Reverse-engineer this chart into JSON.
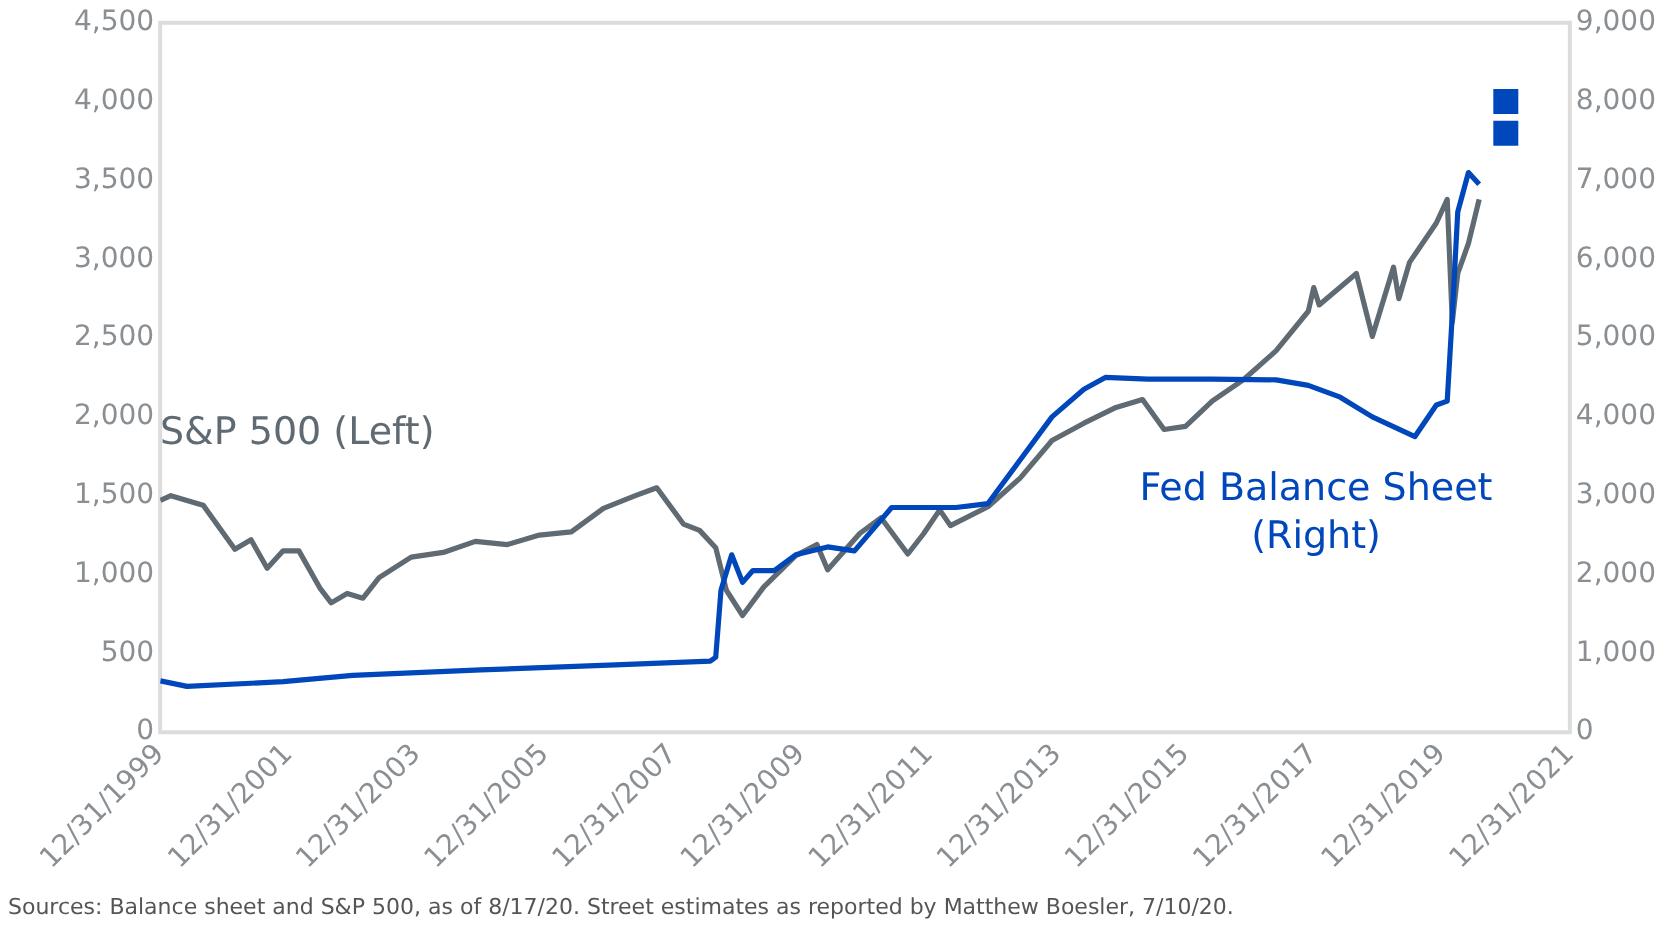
{
  "chart_data": {
    "type": "line",
    "annotations": [
      "Sources: Balance sheet and S&P 500, as of 8/17/20. Street estimates as reported by Matthew Boesler, 7/10/20."
    ],
    "xlim": [
      "1999-12-31",
      "2021-12-31"
    ],
    "xticks": [
      {
        "value": "1999-12-31",
        "label": "12/31/1999"
      },
      {
        "value": "2001-12-31",
        "label": "12/31/2001"
      },
      {
        "value": "2003-12-31",
        "label": "12/31/2003"
      },
      {
        "value": "2005-12-31",
        "label": "12/31/2005"
      },
      {
        "value": "2007-12-31",
        "label": "12/31/2007"
      },
      {
        "value": "2009-12-31",
        "label": "12/31/2009"
      },
      {
        "value": "2011-12-31",
        "label": "12/31/2011"
      },
      {
        "value": "2013-12-31",
        "label": "12/31/2013"
      },
      {
        "value": "2015-12-31",
        "label": "12/31/2015"
      },
      {
        "value": "2017-12-31",
        "label": "12/31/2017"
      },
      {
        "value": "2019-12-31",
        "label": "12/31/2019"
      },
      {
        "value": "2021-12-31",
        "label": "12/31/2021"
      }
    ],
    "ylim": [
      0,
      4500
    ],
    "yticks": [
      0,
      {
        "value": 500,
        "label": "500"
      },
      {
        "value": 1000,
        "label": "1,000"
      },
      {
        "value": 1500,
        "label": "1,500"
      },
      {
        "value": 2000,
        "label": "2,000"
      },
      {
        "value": 2500,
        "label": "2,500"
      },
      {
        "value": 3000,
        "label": "3,000"
      },
      {
        "value": 3500,
        "label": "3,500"
      },
      {
        "value": 4000,
        "label": "4,000"
      },
      {
        "value": 4500,
        "label": "4,500"
      }
    ],
    "y2lim": [
      0,
      9000
    ],
    "y2ticks": [
      0,
      {
        "value": 1000,
        "label": "1,000"
      },
      {
        "value": 2000,
        "label": "2,000"
      },
      {
        "value": 3000,
        "label": "3,000"
      },
      {
        "value": 4000,
        "label": "4,000"
      },
      {
        "value": 5000,
        "label": "5,000"
      },
      {
        "value": 6000,
        "label": "6,000"
      },
      {
        "value": 7000,
        "label": "7,000"
      },
      {
        "value": 8000,
        "label": "8,000"
      },
      {
        "value": 9000,
        "label": "9,000"
      }
    ],
    "grid": false,
    "legend": false,
    "marker": "none",
    "line_style": "solid",
    "series": [
      {
        "name": "S&P 500 (Left)",
        "color": "#5f6a72",
        "x": [
          "2000-01",
          "2000-03",
          "2000-09",
          "2001-03",
          "2001-06",
          "2001-09",
          "2001-12",
          "2002-03",
          "2002-07",
          "2002-09",
          "2002-12",
          "2003-03",
          "2003-06",
          "2003-12",
          "2004-06",
          "2004-12",
          "2005-06",
          "2005-12",
          "2006-06",
          "2006-12",
          "2007-06",
          "2007-10",
          "2008-03",
          "2008-06",
          "2008-09",
          "2008-11",
          "2009-02",
          "2009-06",
          "2009-12",
          "2010-04",
          "2010-06",
          "2010-12",
          "2011-04",
          "2011-09",
          "2011-12",
          "2012-03",
          "2012-05",
          "2012-12",
          "2013-06",
          "2013-12",
          "2014-06",
          "2014-12",
          "2015-05",
          "2015-09",
          "2016-01",
          "2016-06",
          "2016-12",
          "2017-06",
          "2017-12",
          "2018-01",
          "2018-02",
          "2018-09",
          "2018-12",
          "2019-04",
          "2019-05",
          "2019-07",
          "2019-12",
          "2020-02",
          "2020-03",
          "2020-04",
          "2020-06",
          "2020-08"
        ],
        "values": [
          1470,
          1500,
          1440,
          1160,
          1220,
          1040,
          1150,
          1150,
          910,
          820,
          880,
          850,
          980,
          1110,
          1140,
          1210,
          1190,
          1250,
          1270,
          1420,
          1500,
          1550,
          1320,
          1280,
          1170,
          900,
          740,
          920,
          1120,
          1190,
          1030,
          1260,
          1360,
          1130,
          1260,
          1410,
          1310,
          1430,
          1610,
          1850,
          1960,
          2060,
          2110,
          1920,
          1940,
          2100,
          2240,
          2420,
          2670,
          2820,
          2710,
          2910,
          2510,
          2950,
          2750,
          2980,
          3230,
          3380,
          2600,
          2910,
          3100,
          3380
        ]
      },
      {
        "name": "Fed Balance Sheet (Right)",
        "color": "#0047bb",
        "axis": "y2",
        "x": [
          "2000-01",
          "2000-06",
          "2001-12",
          "2003-01",
          "2005-01",
          "2007-01",
          "2008-08",
          "2008-09",
          "2008-10",
          "2008-12",
          "2009-02",
          "2009-04",
          "2009-08",
          "2009-12",
          "2010-06",
          "2010-11",
          "2011-06",
          "2012-06",
          "2012-12",
          "2013-06",
          "2013-12",
          "2014-06",
          "2014-10",
          "2015-06",
          "2016-06",
          "2017-06",
          "2017-12",
          "2018-06",
          "2018-12",
          "2019-08",
          "2019-12",
          "2020-02",
          "2020-03",
          "2020-04",
          "2020-06",
          "2020-08"
        ],
        "values": [
          650,
          580,
          640,
          720,
          790,
          850,
          900,
          950,
          1800,
          2250,
          1900,
          2050,
          2050,
          2250,
          2350,
          2300,
          2850,
          2850,
          2900,
          3450,
          4000,
          4350,
          4500,
          4480,
          4480,
          4470,
          4400,
          4250,
          4000,
          3750,
          4150,
          4200,
          5300,
          6600,
          7100,
          6950
        ]
      },
      {
        "type": "scatter",
        "color": "#0047bb",
        "axis": "y2",
        "marker": "square",
        "x": [
          "2020-12-31",
          "2020-12-31"
        ],
        "values": [
          8000,
          7600
        ]
      }
    ]
  }
}
